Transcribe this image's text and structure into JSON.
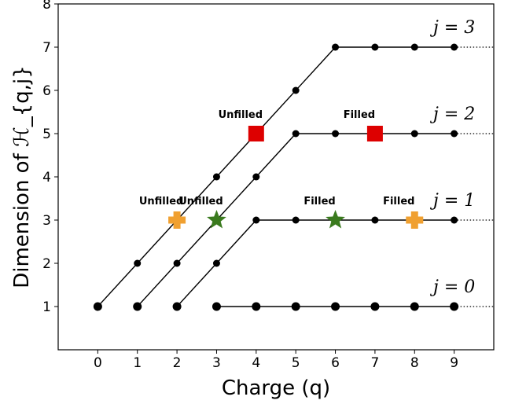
{
  "chart_data": {
    "type": "line",
    "xlabel": "Charge (q)",
    "ylabel": "Dimension of ℋ_{q,j}",
    "xlim": [
      -1,
      10
    ],
    "ylim": [
      0,
      8
    ],
    "xticks": [
      0,
      1,
      2,
      3,
      4,
      5,
      6,
      7,
      8,
      9
    ],
    "yticks": [
      1,
      2,
      3,
      4,
      5,
      6,
      7,
      8
    ],
    "grid": false,
    "series": [
      {
        "name": "j = 0",
        "label": "j = 0",
        "x": [
          3,
          4,
          5,
          6,
          7,
          8,
          9
        ],
        "y": [
          1,
          1,
          1,
          1,
          1,
          1,
          1
        ],
        "dotted_extension": true
      },
      {
        "name": "j = 1",
        "label": "j = 1",
        "x": [
          2,
          3,
          4,
          5,
          6,
          7,
          8,
          9
        ],
        "y": [
          1,
          2,
          3,
          3,
          3,
          3,
          3,
          3
        ],
        "dotted_extension": true
      },
      {
        "name": "j = 2",
        "label": "j = 2",
        "x": [
          1,
          2,
          3,
          4,
          5,
          6,
          7,
          8,
          9
        ],
        "y": [
          1,
          2,
          3,
          4,
          5,
          5,
          5,
          5,
          5
        ],
        "dotted_extension": true
      },
      {
        "name": "j = 3",
        "label": "j = 3",
        "x": [
          0,
          1,
          2,
          3,
          4,
          5,
          6,
          7,
          8,
          9
        ],
        "y": [
          1,
          2,
          3,
          4,
          5,
          6,
          7,
          7,
          7,
          7
        ],
        "dotted_extension": true
      }
    ],
    "markers": [
      {
        "shape": "square",
        "color": "#dd0000",
        "x": 4,
        "y": 5,
        "label": "Unfilled"
      },
      {
        "shape": "square",
        "color": "#dd0000",
        "x": 7,
        "y": 5,
        "label": "Filled"
      },
      {
        "shape": "star",
        "color": "#3a7a1e",
        "x": 3,
        "y": 3,
        "label": "Unfilled"
      },
      {
        "shape": "star",
        "color": "#3a7a1e",
        "x": 6,
        "y": 3,
        "label": "Filled"
      },
      {
        "shape": "plus",
        "color": "#f0a030",
        "x": 2,
        "y": 3,
        "label": "Unfilled"
      },
      {
        "shape": "plus",
        "color": "#f0a030",
        "x": 8,
        "y": 3,
        "label": "Filled"
      }
    ]
  }
}
